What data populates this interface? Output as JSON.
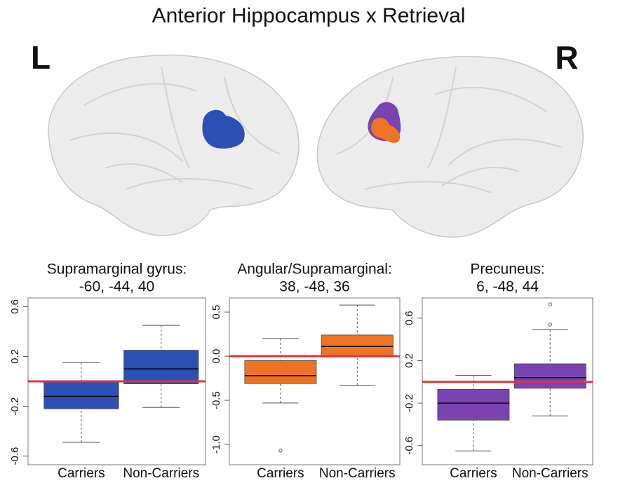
{
  "title": "Anterior Hippocampus x Retrieval",
  "left_label": "L",
  "right_label": "R",
  "chart_data": [
    {
      "type": "box",
      "title": "Supramarginal gyrus:",
      "subtitle": "-60, -44, 40",
      "color": "#2b50b5",
      "categories": [
        "Carriers",
        "Non-Carriers"
      ],
      "stats": [
        {
          "min": -0.49,
          "q1": -0.22,
          "median": -0.12,
          "q3": 0.0,
          "max": 0.15,
          "outliers": []
        },
        {
          "min": -0.21,
          "q1": -0.02,
          "median": 0.1,
          "q3": 0.25,
          "max": 0.45,
          "outliers": []
        }
      ],
      "hline": 0,
      "hline_color": "#e2323c",
      "ylim": [
        -0.67,
        0.67
      ],
      "yticks": [
        -0.6,
        -0.2,
        0.2,
        0.6
      ]
    },
    {
      "type": "box",
      "title": "Angular/Supramarginal:",
      "subtitle": "38, -48, 36",
      "color": "#ee7424",
      "categories": [
        "Carriers",
        "Non-Carriers"
      ],
      "stats": [
        {
          "min": -0.53,
          "q1": -0.31,
          "median": -0.22,
          "q3": -0.05,
          "max": 0.2,
          "outliers": [
            -1.07
          ]
        },
        {
          "min": -0.33,
          "q1": 0.0,
          "median": 0.11,
          "q3": 0.24,
          "max": 0.58,
          "outliers": []
        }
      ],
      "hline": 0,
      "hline_color": "#e2323c",
      "ylim": [
        -1.23,
        0.66
      ],
      "yticks": [
        {
          "value": -1,
          "label": "-1.0"
        },
        -0.5,
        {
          "value": 0,
          "label": "0.0"
        },
        0.5
      ]
    },
    {
      "type": "box",
      "title": "Precuneus:",
      "subtitle": "6, -48, 44",
      "color": "#7b43b2",
      "categories": [
        "Carriers",
        "Non-Carriers"
      ],
      "stats": [
        {
          "min": -0.65,
          "q1": -0.36,
          "median": -0.2,
          "q3": -0.07,
          "max": 0.06,
          "outliers": []
        },
        {
          "min": -0.32,
          "q1": -0.06,
          "median": 0.04,
          "q3": 0.17,
          "max": 0.49,
          "outliers": [
            0.73,
            0.54
          ]
        }
      ],
      "hline": 0,
      "hline_color": "#e2323c",
      "ylim": [
        -0.78,
        0.79
      ],
      "yticks": [
        -0.6,
        -0.2,
        0.2,
        0.6
      ]
    }
  ]
}
